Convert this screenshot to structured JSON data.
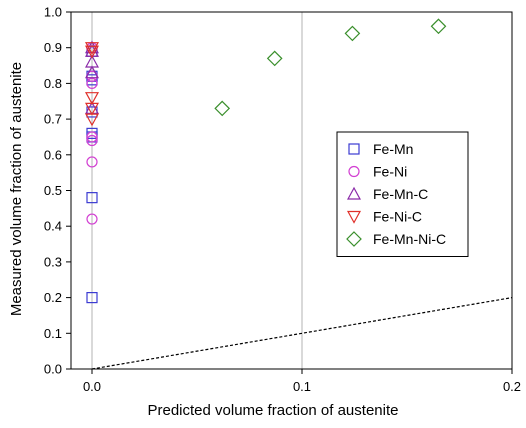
{
  "chart_data": {
    "type": "scatter",
    "xlabel": "Predicted volume fraction of austenite",
    "ylabel": "Measured volume fraction of austenite",
    "xlim": [
      -0.01,
      0.2
    ],
    "ylim": [
      0,
      1.0
    ],
    "xticks": [
      0.0,
      0.1,
      0.2
    ],
    "xtick_labels": [
      "0.0",
      "0.1",
      "0.2"
    ],
    "yticks": [
      0.0,
      0.1,
      0.2,
      0.3,
      0.4,
      0.5,
      0.6,
      0.7,
      0.8,
      0.9,
      1.0
    ],
    "ytick_labels": [
      "0.0",
      "0.1",
      "0.2",
      "0.3",
      "0.4",
      "0.5",
      "0.6",
      "0.7",
      "0.8",
      "0.9",
      "1.0"
    ],
    "grid": "vertical at x = 0.0 and x = 0.1",
    "legend_position": "right",
    "reference_line": {
      "style": "dashed",
      "color": "#000000",
      "x": [
        0,
        0.2
      ],
      "y": [
        0,
        0.2
      ]
    },
    "series": [
      {
        "name": "Fe-Mn",
        "marker": "square",
        "color": "#3b3bd1",
        "points": [
          [
            0,
            0.2
          ],
          [
            0,
            0.48
          ],
          [
            0,
            0.65
          ],
          [
            0,
            0.66
          ],
          [
            0,
            0.72
          ],
          [
            0,
            0.81
          ],
          [
            0,
            0.82
          ],
          [
            0,
            0.89
          ]
        ]
      },
      {
        "name": "Fe-Ni",
        "marker": "circle",
        "color": "#d23fd2",
        "points": [
          [
            0,
            0.42
          ],
          [
            0,
            0.58
          ],
          [
            0,
            0.64
          ],
          [
            0,
            0.65
          ],
          [
            0,
            0.8
          ],
          [
            0,
            0.82
          ],
          [
            0,
            0.9
          ]
        ]
      },
      {
        "name": "Fe-Mn-C",
        "marker": "triangle-up",
        "color": "#8a2aa8",
        "points": [
          [
            0,
            0.73
          ],
          [
            0,
            0.83
          ],
          [
            0,
            0.86
          ],
          [
            0,
            0.89
          ],
          [
            0,
            0.9
          ]
        ]
      },
      {
        "name": "Fe-Ni-C",
        "marker": "triangle-down",
        "color": "#e0302a",
        "points": [
          [
            0,
            0.7
          ],
          [
            0,
            0.73
          ],
          [
            0,
            0.76
          ],
          [
            0,
            0.89
          ],
          [
            0,
            0.9
          ]
        ]
      },
      {
        "name": "Fe-Mn-Ni-C",
        "marker": "diamond",
        "color": "#3a8f2c",
        "points": [
          [
            0.062,
            0.73
          ],
          [
            0.087,
            0.87
          ],
          [
            0.124,
            0.94
          ],
          [
            0.165,
            0.96
          ]
        ]
      }
    ]
  }
}
